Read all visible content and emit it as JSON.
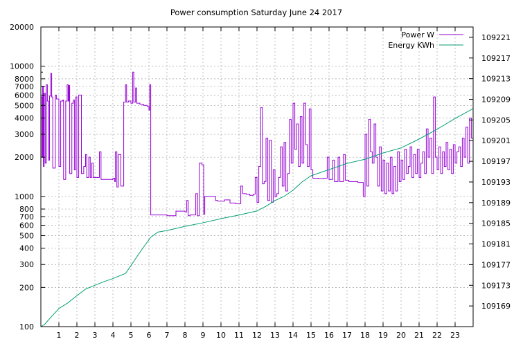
{
  "chart_data": {
    "type": "line",
    "title": "Power consumption Saturday June 24 2017",
    "x": {
      "range": [
        0,
        24
      ],
      "ticks": [
        1,
        2,
        3,
        4,
        5,
        6,
        7,
        8,
        9,
        10,
        11,
        12,
        13,
        14,
        15,
        16,
        17,
        18,
        19,
        20,
        21,
        22,
        23
      ],
      "tick_labels": [
        "1",
        "2",
        "3",
        "4",
        "5",
        "6",
        "7",
        "8",
        "9",
        "10",
        "11",
        "12",
        "13",
        "14",
        "15",
        "16",
        "17",
        "18",
        "19",
        "20",
        "21",
        "22",
        "23"
      ]
    },
    "y_left": {
      "scale": "log",
      "range": [
        100,
        20000
      ],
      "ticks": [
        100,
        200,
        300,
        400,
        500,
        600,
        700,
        800,
        1000,
        2000,
        3000,
        4000,
        5000,
        6000,
        7000,
        8000,
        10000,
        20000
      ],
      "tick_labels": [
        "100",
        "200",
        "300",
        "400",
        "500",
        "600",
        "700",
        "800",
        "1000",
        "2000",
        "3000",
        "4000",
        "5000",
        "6000",
        "7000",
        "8000",
        "10000",
        "20000"
      ]
    },
    "y_right": {
      "scale": "linear",
      "range": [
        109165,
        109223
      ],
      "ticks": [
        109169,
        109173,
        109177,
        109181,
        109185,
        109189,
        109193,
        109197,
        109201,
        109205,
        109209,
        109213,
        109217,
        109221
      ],
      "tick_labels": [
        "109169",
        "109173",
        "109177",
        "109181",
        "109185",
        "109189",
        "109193",
        "109197",
        "109201",
        "109205",
        "109209",
        "109213",
        "109217",
        "109221"
      ]
    },
    "grid": true,
    "legend_position": "top-right",
    "series": [
      {
        "name": "Power W",
        "color": "#9400d3",
        "axis": "left",
        "step": true,
        "points": [
          [
            0.0,
            5800
          ],
          [
            0.06,
            2000
          ],
          [
            0.1,
            7000
          ],
          [
            0.14,
            1700
          ],
          [
            0.18,
            6200
          ],
          [
            0.24,
            1800
          ],
          [
            0.3,
            7200
          ],
          [
            0.36,
            5400
          ],
          [
            0.42,
            1900
          ],
          [
            0.48,
            5900
          ],
          [
            0.55,
            8800
          ],
          [
            0.6,
            5800
          ],
          [
            0.66,
            1650
          ],
          [
            0.8,
            6000
          ],
          [
            0.86,
            5600
          ],
          [
            1.0,
            1700
          ],
          [
            1.1,
            5400
          ],
          [
            1.22,
            5500
          ],
          [
            1.26,
            1350
          ],
          [
            1.38,
            5400
          ],
          [
            1.46,
            7200
          ],
          [
            1.52,
            5400
          ],
          [
            1.56,
            7100
          ],
          [
            1.6,
            1500
          ],
          [
            1.72,
            5200
          ],
          [
            1.8,
            5500
          ],
          [
            1.86,
            1600
          ],
          [
            1.94,
            5800
          ],
          [
            2.0,
            1400
          ],
          [
            2.1,
            6000
          ],
          [
            2.2,
            6000
          ],
          [
            2.25,
            1500
          ],
          [
            2.38,
            1700
          ],
          [
            2.48,
            2100
          ],
          [
            2.55,
            1400
          ],
          [
            2.66,
            2000
          ],
          [
            2.74,
            1400
          ],
          [
            2.82,
            1800
          ],
          [
            2.9,
            1400
          ],
          [
            3.0,
            1400
          ],
          [
            3.25,
            2200
          ],
          [
            3.34,
            1350
          ],
          [
            4.0,
            1380
          ],
          [
            4.1,
            1300
          ],
          [
            4.14,
            2200
          ],
          [
            4.22,
            1180
          ],
          [
            4.3,
            2100
          ],
          [
            4.44,
            1200
          ],
          [
            4.6,
            5300
          ],
          [
            4.7,
            7200
          ],
          [
            4.76,
            5300
          ],
          [
            4.86,
            5400
          ],
          [
            5.0,
            5200
          ],
          [
            5.1,
            9000
          ],
          [
            5.16,
            5300
          ],
          [
            5.26,
            6800
          ],
          [
            5.32,
            5200
          ],
          [
            5.5,
            5100
          ],
          [
            5.7,
            5000
          ],
          [
            5.9,
            4900
          ],
          [
            6.0,
            4600
          ],
          [
            6.04,
            7200
          ],
          [
            6.1,
            720
          ],
          [
            7.0,
            710
          ],
          [
            7.4,
            710
          ],
          [
            7.5,
            770
          ],
          [
            8.0,
            760
          ],
          [
            8.1,
            930
          ],
          [
            8.18,
            710
          ],
          [
            8.28,
            720
          ],
          [
            8.6,
            1050
          ],
          [
            8.7,
            710
          ],
          [
            8.8,
            1800
          ],
          [
            8.94,
            1750
          ],
          [
            9.04,
            730
          ],
          [
            9.1,
            1000
          ],
          [
            9.3,
            1000
          ],
          [
            9.6,
            1000
          ],
          [
            9.7,
            930
          ],
          [
            9.82,
            920
          ],
          [
            10.0,
            920
          ],
          [
            10.2,
            940
          ],
          [
            10.5,
            890
          ],
          [
            10.8,
            880
          ],
          [
            11.1,
            1200
          ],
          [
            11.2,
            1050
          ],
          [
            11.4,
            1040
          ],
          [
            11.6,
            1020
          ],
          [
            11.8,
            1040
          ],
          [
            11.9,
            1400
          ],
          [
            12.0,
            900
          ],
          [
            12.1,
            1700
          ],
          [
            12.2,
            4800
          ],
          [
            12.3,
            1250
          ],
          [
            12.4,
            1300
          ],
          [
            12.5,
            2800
          ],
          [
            12.6,
            930
          ],
          [
            12.7,
            2700
          ],
          [
            12.8,
            900
          ],
          [
            12.9,
            1600
          ],
          [
            13.0,
            1000
          ],
          [
            13.1,
            1050
          ],
          [
            13.2,
            1400
          ],
          [
            13.3,
            2400
          ],
          [
            13.4,
            1200
          ],
          [
            13.5,
            2600
          ],
          [
            13.6,
            1100
          ],
          [
            13.7,
            1500
          ],
          [
            13.8,
            3900
          ],
          [
            13.9,
            1800
          ],
          [
            14.0,
            5200
          ],
          [
            14.1,
            2300
          ],
          [
            14.2,
            3600
          ],
          [
            14.3,
            1700
          ],
          [
            14.4,
            4100
          ],
          [
            14.5,
            1800
          ],
          [
            14.6,
            5200
          ],
          [
            14.7,
            2500
          ],
          [
            14.8,
            1700
          ],
          [
            14.9,
            4700
          ],
          [
            15.0,
            1600
          ],
          [
            15.1,
            1380
          ],
          [
            15.4,
            1370
          ],
          [
            15.7,
            1380
          ],
          [
            15.9,
            2000
          ],
          [
            16.0,
            1350
          ],
          [
            16.2,
            1900
          ],
          [
            16.3,
            1300
          ],
          [
            16.5,
            2000
          ],
          [
            16.6,
            1300
          ],
          [
            16.8,
            2100
          ],
          [
            16.9,
            1330
          ],
          [
            17.1,
            1300
          ],
          [
            17.4,
            1300
          ],
          [
            17.6,
            1280
          ],
          [
            17.8,
            1280
          ],
          [
            17.9,
            1000
          ],
          [
            18.0,
            3000
          ],
          [
            18.1,
            1200
          ],
          [
            18.2,
            3900
          ],
          [
            18.3,
            2200
          ],
          [
            18.4,
            1800
          ],
          [
            18.5,
            3600
          ],
          [
            18.6,
            2000
          ],
          [
            18.7,
            1200
          ],
          [
            18.8,
            2400
          ],
          [
            18.9,
            1100
          ],
          [
            19.0,
            1900
          ],
          [
            19.1,
            1050
          ],
          [
            19.2,
            1800
          ],
          [
            19.3,
            1100
          ],
          [
            19.4,
            2000
          ],
          [
            19.5,
            1050
          ],
          [
            19.6,
            1700
          ],
          [
            19.7,
            1100
          ],
          [
            19.8,
            2200
          ],
          [
            19.9,
            1300
          ],
          [
            20.0,
            1900
          ],
          [
            20.1,
            1350
          ],
          [
            20.2,
            2300
          ],
          [
            20.3,
            1500
          ],
          [
            20.4,
            1700
          ],
          [
            20.5,
            2400
          ],
          [
            20.6,
            1400
          ],
          [
            20.7,
            2100
          ],
          [
            20.8,
            1500
          ],
          [
            20.9,
            2300
          ],
          [
            21.0,
            1400
          ],
          [
            21.1,
            1800
          ],
          [
            21.2,
            2200
          ],
          [
            21.3,
            1500
          ],
          [
            21.4,
            3300
          ],
          [
            21.5,
            2000
          ],
          [
            21.6,
            2800
          ],
          [
            21.7,
            1500
          ],
          [
            21.8,
            5800
          ],
          [
            21.9,
            2000
          ],
          [
            22.0,
            1600
          ],
          [
            22.1,
            2400
          ],
          [
            22.2,
            1500
          ],
          [
            22.3,
            2200
          ],
          [
            22.4,
            1700
          ],
          [
            22.5,
            2600
          ],
          [
            22.6,
            1600
          ],
          [
            22.7,
            2300
          ],
          [
            22.8,
            1500
          ],
          [
            22.9,
            2500
          ],
          [
            23.0,
            1800
          ],
          [
            23.1,
            2200
          ],
          [
            23.2,
            2400
          ],
          [
            23.3,
            1700
          ],
          [
            23.4,
            2800
          ],
          [
            23.5,
            2000
          ],
          [
            23.6,
            3400
          ],
          [
            23.7,
            1800
          ],
          [
            23.8,
            4000
          ],
          [
            23.9,
            2800
          ],
          [
            24.0,
            2800
          ]
        ]
      },
      {
        "name": "Energy KWh",
        "color": "#009e73",
        "axis": "right",
        "step": false,
        "points": [
          [
            0.0,
            109165.0
          ],
          [
            0.2,
            109165.4
          ],
          [
            0.5,
            109166.6
          ],
          [
            1.0,
            109168.5
          ],
          [
            1.5,
            109169.6
          ],
          [
            2.0,
            109171.0
          ],
          [
            2.5,
            109172.3
          ],
          [
            3.0,
            109173.0
          ],
          [
            3.5,
            109173.7
          ],
          [
            4.0,
            109174.3
          ],
          [
            4.7,
            109175.3
          ],
          [
            5.0,
            109176.8
          ],
          [
            5.5,
            109179.4
          ],
          [
            6.1,
            109182.3
          ],
          [
            6.5,
            109183.3
          ],
          [
            7.0,
            109183.6
          ],
          [
            8.0,
            109184.4
          ],
          [
            9.0,
            109185.1
          ],
          [
            10.0,
            109185.9
          ],
          [
            11.0,
            109186.6
          ],
          [
            12.0,
            109187.4
          ],
          [
            12.5,
            109188.3
          ],
          [
            13.0,
            109189.4
          ],
          [
            13.5,
            109190.2
          ],
          [
            14.0,
            109191.4
          ],
          [
            14.5,
            109193.0
          ],
          [
            15.0,
            109194.2
          ],
          [
            16.0,
            109195.4
          ],
          [
            17.0,
            109196.6
          ],
          [
            18.0,
            109197.4
          ],
          [
            19.0,
            109198.6
          ],
          [
            20.0,
            109199.6
          ],
          [
            21.0,
            109201.3
          ],
          [
            22.0,
            109203.2
          ],
          [
            23.0,
            109205.3
          ],
          [
            24.0,
            109207.2
          ]
        ]
      }
    ]
  }
}
